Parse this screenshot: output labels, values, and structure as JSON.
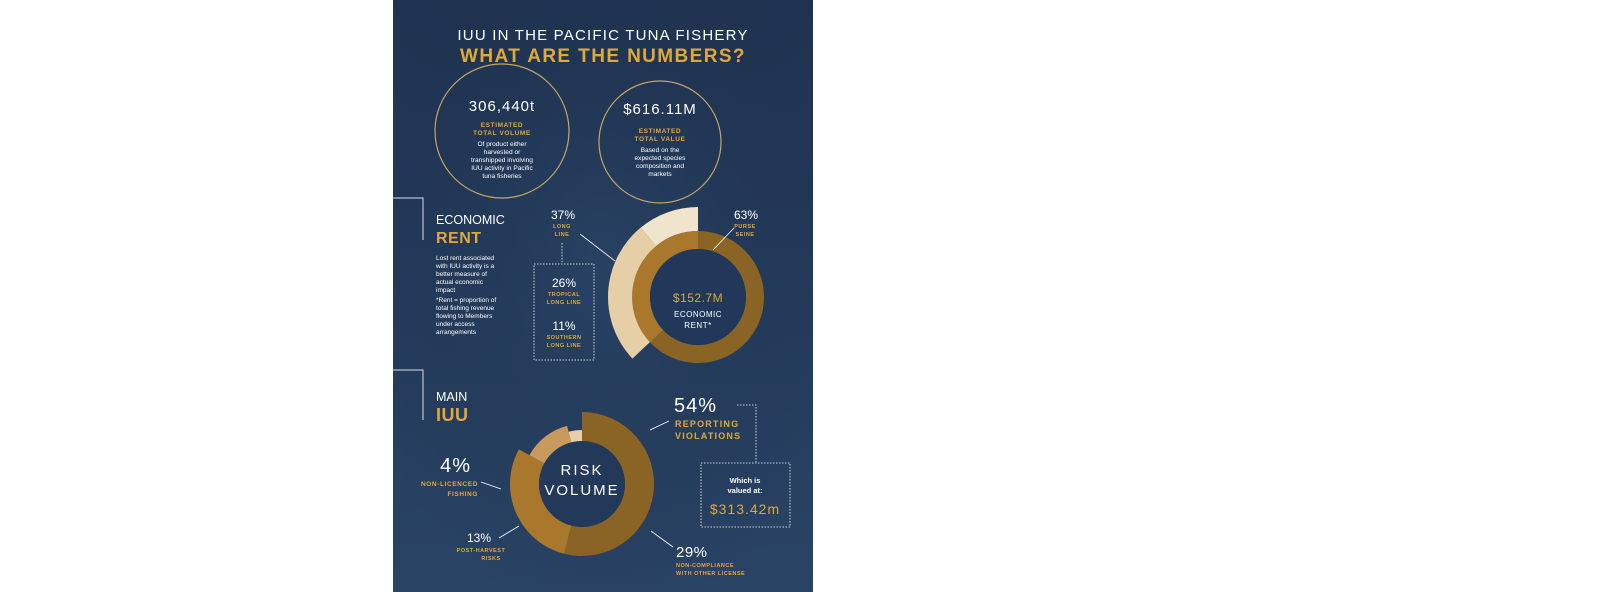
{
  "header": {
    "title": "IUU IN THE PACIFIC TUNA FISHERY",
    "subtitle": "WHAT ARE THE NUMBERS?"
  },
  "circles": [
    {
      "value": "306,440t",
      "label_line1": "ESTIMATED",
      "label_line2": "TOTAL VOLUME",
      "desc": [
        "Of product either",
        "harvested or",
        "transhipped involving",
        "IUU activity in Pacific",
        "tuna fisheries"
      ]
    },
    {
      "value": "$616.11M",
      "label_line1": "ESTIMATED",
      "label_line2": "TOTAL VALUE",
      "desc": [
        "Based on the",
        "expected species",
        "composition and",
        "markets"
      ]
    }
  ],
  "economic_rent": {
    "heading_line1": "ECONOMIC",
    "heading_line2": "RENT",
    "desc": [
      "Lost rent associated",
      "with IUU activity is a",
      "better measure of",
      "actual economic",
      "impact"
    ],
    "note": [
      "*Rent = proportion of",
      "total fishing revenue",
      "flowing to Members",
      "under access",
      "arrangements"
    ],
    "center_value": "$152.7M",
    "center_label_line1": "ECONOMIC",
    "center_label_line2": "RENT*"
  },
  "main_iuu": {
    "heading_line1": "MAIN",
    "heading_line2": "IUU",
    "center_line1": "RISK",
    "center_line2": "VOLUME",
    "valued_line1": "Which is",
    "valued_line2": "valued at:",
    "valued_amount": "$313.42m"
  },
  "colors": {
    "background": "#233a5a",
    "gold": "#e0a83a",
    "dark_gold": "#8a6424",
    "mid_gold": "#a9782d",
    "tan": "#c99a5e",
    "light_tan": "#e6cfa6",
    "cream": "#f1e4cc",
    "text": "#ffffff"
  },
  "chart_data": [
    {
      "type": "pie",
      "title": "ECONOMIC RENT",
      "series": [
        {
          "name": "PURSE SEINE",
          "value": 63,
          "label": "63%"
        },
        {
          "name": "TROPICAL LONG LINE",
          "value": 26,
          "label": "26%"
        },
        {
          "name": "SOUTHERN LONG LINE",
          "value": 11,
          "label": "11%"
        }
      ],
      "group_labels": [
        {
          "name": "LONG LINE",
          "value": 37,
          "label": "37%"
        }
      ]
    },
    {
      "type": "pie",
      "title": "RISK VOLUME",
      "series": [
        {
          "name": "REPORTING VIOLATIONS",
          "value": 54,
          "label": "54%"
        },
        {
          "name": "NON-COMPLIANCE WITH OTHER LICENSE",
          "value": 29,
          "label": "29%"
        },
        {
          "name": "POST-HARVEST RISKS",
          "value": 13,
          "label": "13%"
        },
        {
          "name": "NON-LICENCED FISHING",
          "value": 4,
          "label": "4%"
        }
      ]
    }
  ]
}
